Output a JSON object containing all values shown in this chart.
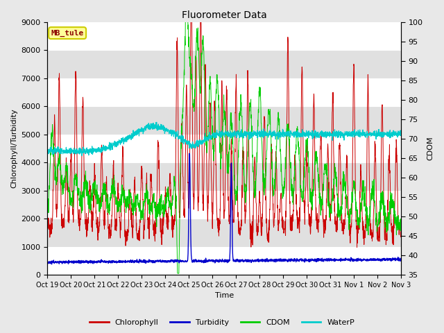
{
  "title": "Fluorometer Data",
  "xlabel": "Time",
  "ylabel_left": "Chlorophyll/Turbidity",
  "ylabel_right": "CDOM",
  "ylim_left": [
    0,
    9000
  ],
  "ylim_right": [
    35,
    100
  ],
  "yticks_left": [
    0,
    1000,
    2000,
    3000,
    4000,
    5000,
    6000,
    7000,
    8000,
    9000
  ],
  "yticks_right": [
    35,
    40,
    45,
    50,
    55,
    60,
    65,
    70,
    75,
    80,
    85,
    90,
    95,
    100
  ],
  "xtick_labels": [
    "Oct 19",
    "Oct 20",
    "Oct 21",
    "Oct 22",
    "Oct 23",
    "Oct 24",
    "Oct 25",
    "Oct 26",
    "Oct 27",
    "Oct 28",
    "Oct 29",
    "Oct 30",
    "Oct 31",
    "Nov 1",
    "Nov 2",
    "Nov 3"
  ],
  "annotation_text": "MB_tule",
  "annotation_color": "#8B0000",
  "annotation_bg": "#FFFF99",
  "annotation_border": "#CCCC00",
  "colors": {
    "Chlorophyll": "#CC0000",
    "Turbidity": "#0000CC",
    "CDOM": "#00CC00",
    "WaterP": "#00CCCC"
  },
  "bg_color": "#E8E8E8",
  "plot_bg": "#F0F0F0",
  "band_colors": [
    "#FFFFFF",
    "#E0E0E0"
  ],
  "legend_labels": [
    "Chlorophyll",
    "Turbidity",
    "CDOM",
    "WaterP"
  ],
  "figsize": [
    6.4,
    4.8
  ],
  "dpi": 100
}
